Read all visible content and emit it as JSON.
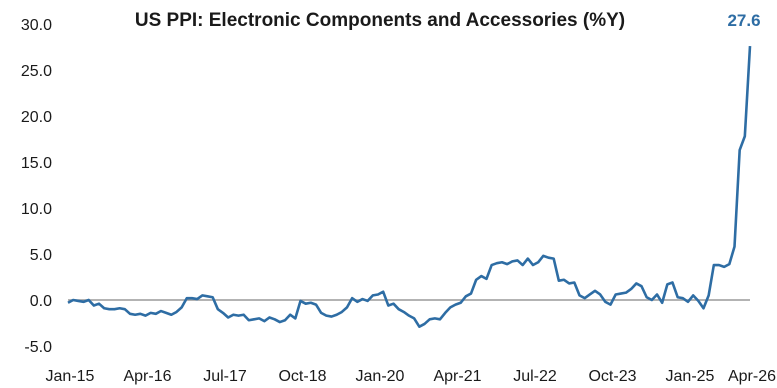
{
  "colors": {
    "line": "#2e6da4",
    "zero": "#9a9a9a",
    "label": "#2e6da4"
  },
  "chart_data": {
    "type": "line",
    "title": "US PPI: Electronic Components and Accessories (%Y)",
    "xlabel": "",
    "ylabel": "",
    "ylim": [
      -5,
      30
    ],
    "yticks": [
      "30.0",
      "25.0",
      "20.0",
      "15.0",
      "10.0",
      "5.0",
      "0.0",
      "-5.0"
    ],
    "xticks": [
      "Jan-15",
      "Apr-16",
      "Jul-17",
      "Oct-18",
      "Jan-20",
      "Apr-21",
      "Jul-22",
      "Oct-23",
      "Jan-25",
      "Apr-26"
    ],
    "end_label": "27.6",
    "grid": false,
    "zero_line": true,
    "series": [
      {
        "values": [
          -0.3,
          0.0,
          -0.1,
          -0.2,
          0.0,
          -0.6,
          -0.4,
          -0.9,
          -1.0,
          -1.0,
          -0.9,
          -1.0,
          -1.5,
          -1.6,
          -1.5,
          -1.7,
          -1.4,
          -1.5,
          -1.2,
          -1.4,
          -1.6,
          -1.3,
          -0.8,
          0.2,
          0.2,
          0.1,
          0.5,
          0.4,
          0.3,
          -1.0,
          -1.4,
          -1.9,
          -1.6,
          -1.7,
          -1.6,
          -2.2,
          -2.1,
          -2.0,
          -2.3,
          -1.9,
          -2.1,
          -2.4,
          -2.2,
          -1.6,
          -2.0,
          -0.1,
          -0.4,
          -0.3,
          -0.5,
          -1.4,
          -1.7,
          -1.8,
          -1.6,
          -1.3,
          -0.8,
          0.2,
          -0.2,
          0.1,
          -0.1,
          0.5,
          0.6,
          0.9,
          -0.6,
          -0.4,
          -1.0,
          -1.3,
          -1.7,
          -2.0,
          -2.9,
          -2.6,
          -2.1,
          -2.0,
          -2.1,
          -1.4,
          -0.8,
          -0.5,
          -0.3,
          0.4,
          0.7,
          2.2,
          2.6,
          2.3,
          3.8,
          4.0,
          4.1,
          3.9,
          4.2,
          4.3,
          3.8,
          4.5,
          3.8,
          4.1,
          4.8,
          4.6,
          4.5,
          2.1,
          2.2,
          1.8,
          1.9,
          0.5,
          0.2,
          0.6,
          1.0,
          0.6,
          -0.2,
          -0.5,
          0.6,
          0.7,
          0.8,
          1.2,
          1.8,
          1.5,
          0.3,
          0.0,
          0.6,
          -0.3,
          1.7,
          1.9,
          0.3,
          0.2,
          -0.2,
          0.5,
          -0.1,
          -0.9,
          0.5,
          3.8,
          3.8,
          3.6,
          3.9,
          5.8,
          16.3,
          17.8,
          27.6
        ]
      }
    ]
  }
}
